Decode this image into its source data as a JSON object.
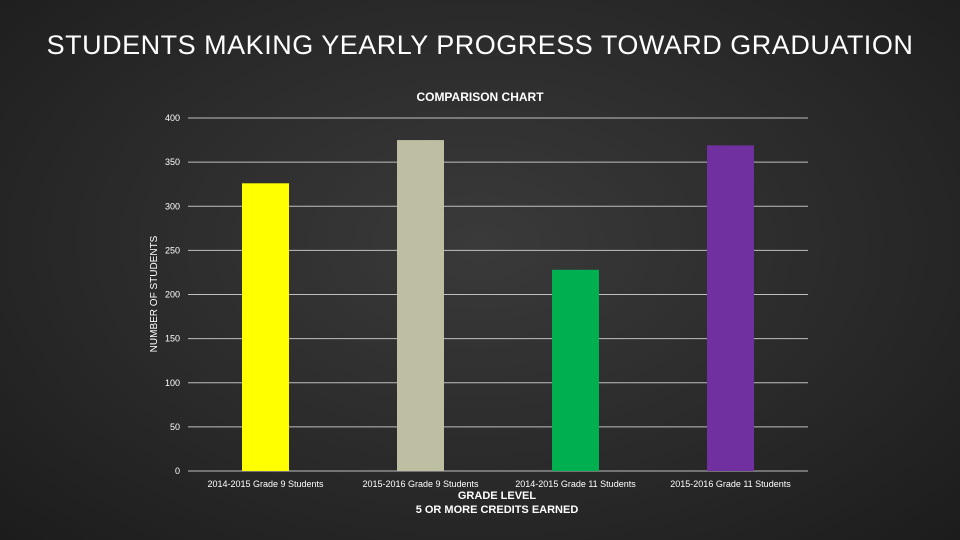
{
  "slide": {
    "title": "STUDENTS MAKING YEARLY PROGRESS TOWARD GRADUATION"
  },
  "chart_data": {
    "type": "bar",
    "title": "COMPARISON CHART",
    "ylabel": "NUMBER OF STUDENTS",
    "xlabel": [
      "GRADE LEVEL",
      "5 OR MORE CREDITS EARNED"
    ],
    "categories": [
      "2014-2015 Grade 9 Students",
      "2015-2016 Grade 9 Students",
      "2014-2015 Grade 11 Students",
      "2015-2016 Grade 11 Students"
    ],
    "values": [
      326,
      375,
      228,
      369
    ],
    "colors": [
      "#ffff00",
      "#bebea2",
      "#00b050",
      "#7030a0"
    ],
    "ylim": [
      0,
      400
    ],
    "yticks": [
      0,
      50,
      100,
      150,
      200,
      250,
      300,
      350,
      400
    ],
    "grid": true,
    "legend": "none"
  }
}
